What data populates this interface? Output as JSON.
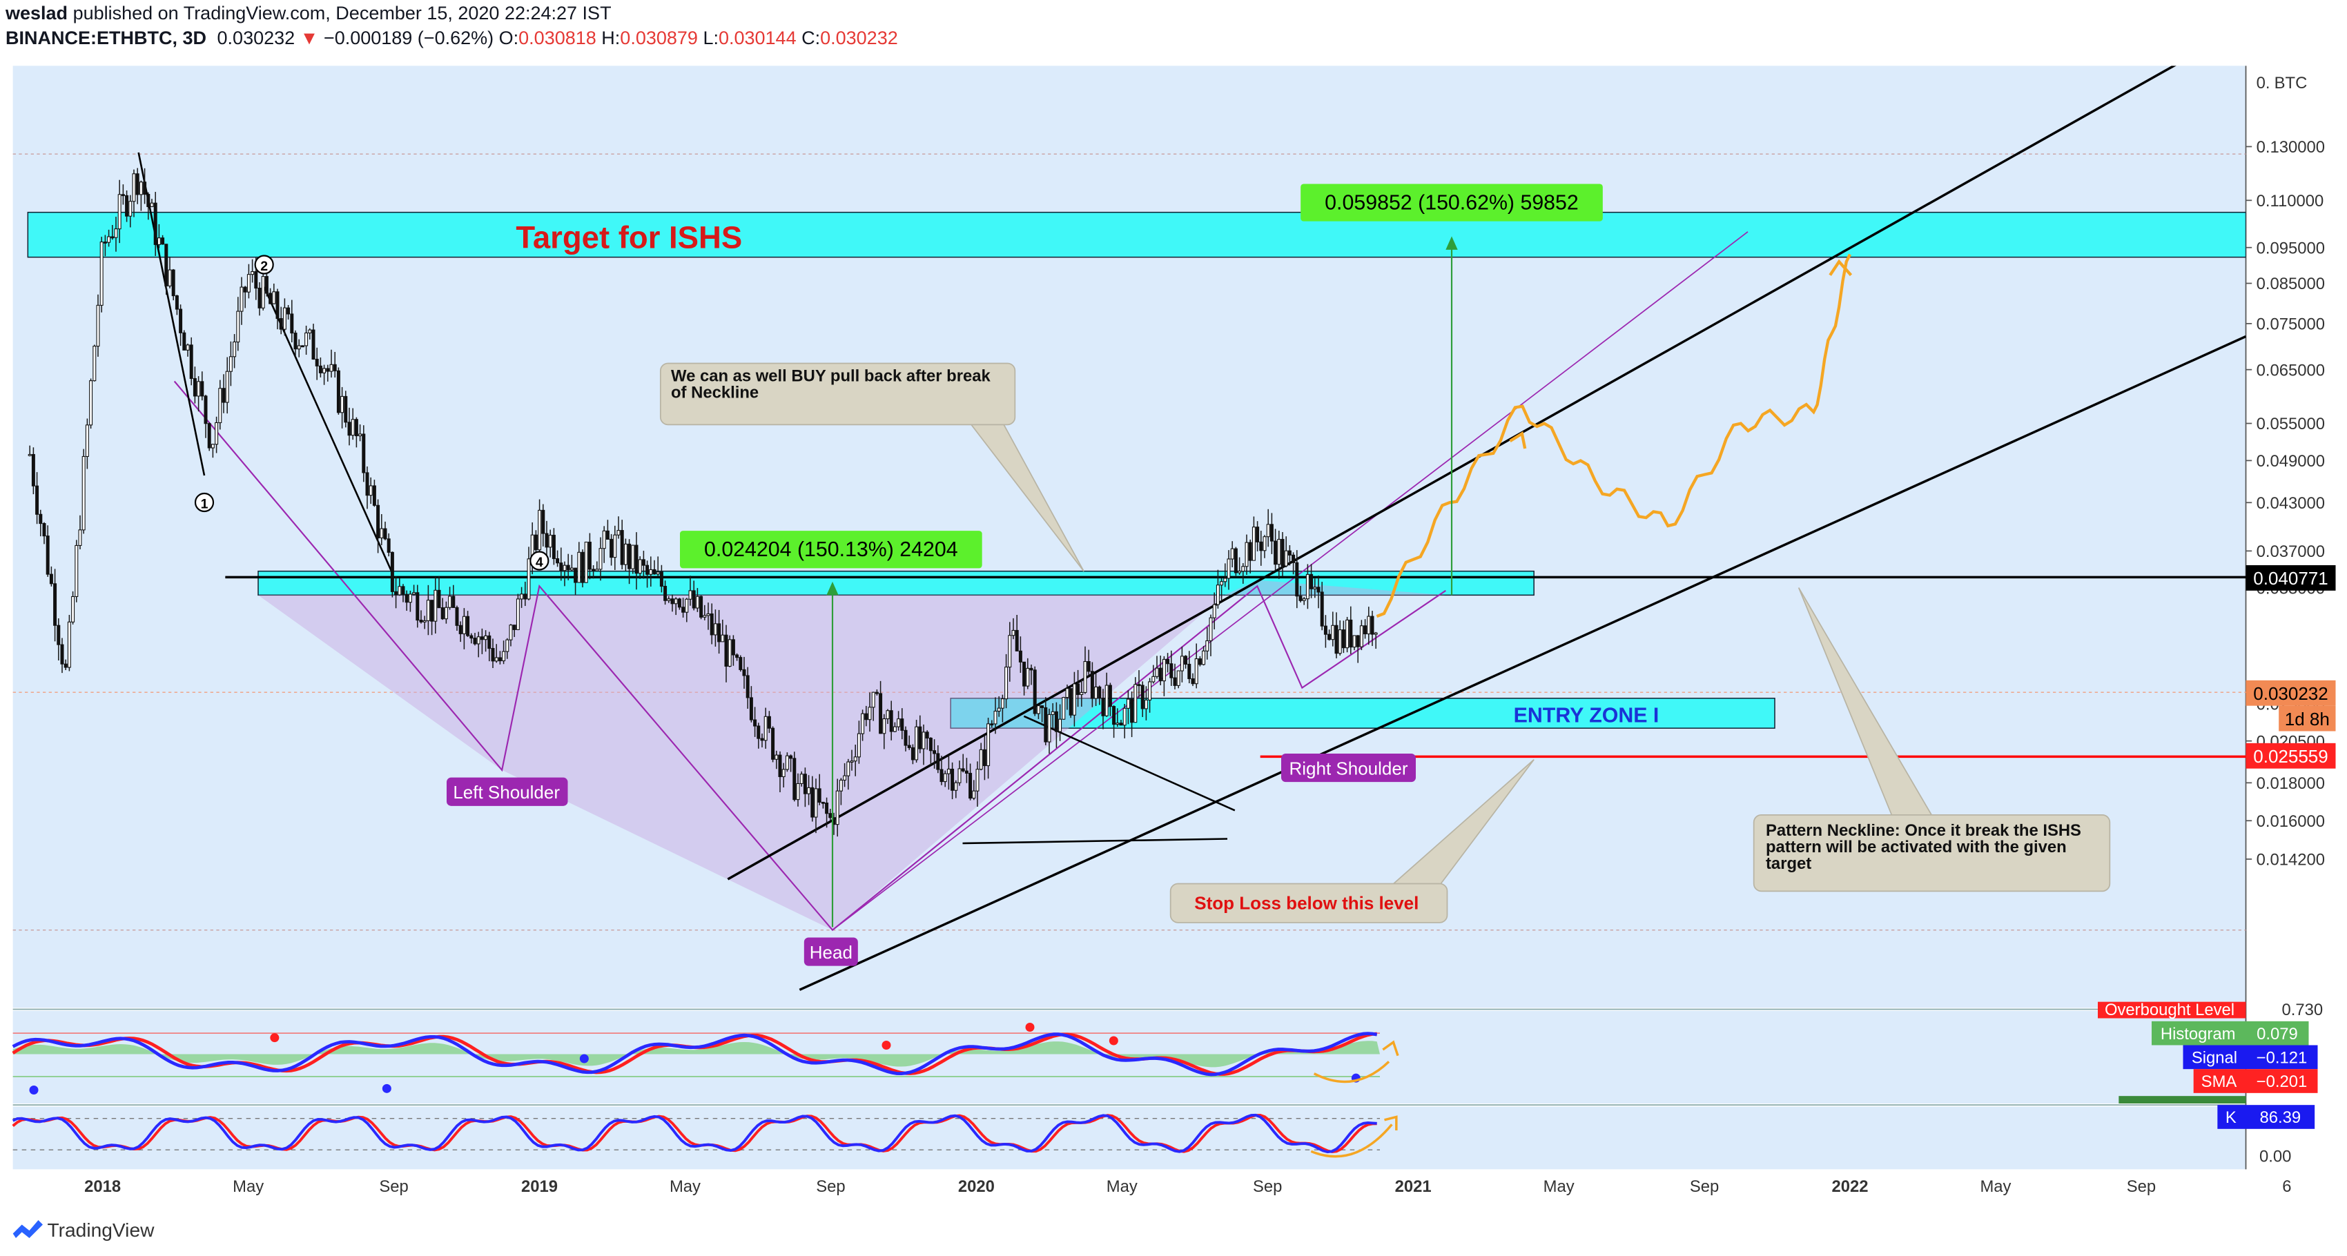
{
  "header": {
    "author": "weslad",
    "published": "published on TradingView.com, December 15, 2020 22:24:27 IST",
    "symbol": "BINANCE:ETHBTC, 3D",
    "last": "0.030232",
    "change": "−0.000189 (−0.62%)",
    "o_label": "O:",
    "o": "0.030818",
    "h_label": "H:",
    "h": "0.030879",
    "l_label": "L:",
    "l": "0.030144",
    "c_label": "C:",
    "c": "0.030232"
  },
  "chart_data": {
    "type": "candlestick",
    "y_scale": "log",
    "unit_label": "BTC",
    "y_ticks": [
      "0.130000",
      "0.110000",
      "0.095000",
      "0.085000",
      "0.075000",
      "0.065000",
      "0.055000",
      "0.049000",
      "0.043000",
      "0.037000",
      "0.033000",
      "0.023000",
      "0.020500",
      "0.018000",
      "0.016000",
      "0.014200"
    ],
    "x_ticks": [
      "2018",
      "May",
      "Sep",
      "2019",
      "May",
      "Sep",
      "2020",
      "May",
      "Sep",
      "2021",
      "May",
      "Sep",
      "2022",
      "May",
      "Sep",
      "6"
    ],
    "price_series": [
      {
        "date": "2017-11",
        "value": 0.05
      },
      {
        "date": "2017-12",
        "value": 0.025
      },
      {
        "date": "2018-01",
        "value": 0.095
      },
      {
        "date": "2018-02",
        "value": 0.12
      },
      {
        "date": "2018-03",
        "value": 0.08
      },
      {
        "date": "2018-04",
        "value": 0.052
      },
      {
        "date": "2018-05",
        "value": 0.087
      },
      {
        "date": "2018-06",
        "value": 0.075
      },
      {
        "date": "2018-07",
        "value": 0.068
      },
      {
        "date": "2018-08",
        "value": 0.052
      },
      {
        "date": "2018-09",
        "value": 0.033
      },
      {
        "date": "2018-10",
        "value": 0.031
      },
      {
        "date": "2018-11",
        "value": 0.03
      },
      {
        "date": "2018-12",
        "value": 0.026
      },
      {
        "date": "2019-01",
        "value": 0.04
      },
      {
        "date": "2019-02",
        "value": 0.035
      },
      {
        "date": "2019-03",
        "value": 0.038
      },
      {
        "date": "2019-04",
        "value": 0.034
      },
      {
        "date": "2019-05",
        "value": 0.032
      },
      {
        "date": "2019-06",
        "value": 0.028
      },
      {
        "date": "2019-07",
        "value": 0.022
      },
      {
        "date": "2019-08",
        "value": 0.018
      },
      {
        "date": "2019-09",
        "value": 0.016
      },
      {
        "date": "2019-10",
        "value": 0.023
      },
      {
        "date": "2019-11",
        "value": 0.021
      },
      {
        "date": "2019-12",
        "value": 0.019
      },
      {
        "date": "2020-01",
        "value": 0.018
      },
      {
        "date": "2020-02",
        "value": 0.028
      },
      {
        "date": "2020-03",
        "value": 0.021
      },
      {
        "date": "2020-04",
        "value": 0.025
      },
      {
        "date": "2020-05",
        "value": 0.022
      },
      {
        "date": "2020-06",
        "value": 0.025
      },
      {
        "date": "2020-07",
        "value": 0.026
      },
      {
        "date": "2020-08",
        "value": 0.036
      },
      {
        "date": "2020-09",
        "value": 0.039
      },
      {
        "date": "2020-10",
        "value": 0.033
      },
      {
        "date": "2020-11",
        "value": 0.028
      },
      {
        "date": "2020-12",
        "value": 0.0302
      }
    ],
    "projection": [
      {
        "date": "2020-12",
        "value": 0.0302
      },
      {
        "date": "2021-02",
        "value": 0.043
      },
      {
        "date": "2021-04",
        "value": 0.058
      },
      {
        "date": "2021-06",
        "value": 0.046
      },
      {
        "date": "2021-08",
        "value": 0.04
      },
      {
        "date": "2021-10",
        "value": 0.055
      },
      {
        "date": "2021-12",
        "value": 0.057
      },
      {
        "date": "2022-01",
        "value": 0.093
      }
    ],
    "horizontal_levels": [
      {
        "value": 0.040771,
        "label": "0.040771"
      },
      {
        "value": 0.025559,
        "label": "0.025559"
      }
    ],
    "current_price": "0.030232",
    "countdown": "1d 8h",
    "zones": [
      {
        "label": "Target for ISHS",
        "low": 0.094,
        "high": 0.107
      },
      {
        "label": "",
        "low": 0.039,
        "high": 0.042
      },
      {
        "label": "ENTRY ZONE I",
        "low": 0.027,
        "high": 0.029
      }
    ],
    "measurements": [
      {
        "label": "0.024204 (150.13%) 24204"
      },
      {
        "label": "0.059852 (150.62%) 59852"
      }
    ],
    "annotations": {
      "left_shoulder": "Left Shoulder",
      "head": "Head",
      "right_shoulder": "Right Shoulder",
      "pullback_note": "We can as well BUY pull back after break of Neckline",
      "stop_note": "Stop Loss below this level",
      "neckline_note": "Pattern Neckline: Once it break the ISHS pattern will be activated with the given target",
      "wave_1": "1",
      "wave_2": "2",
      "wave_4": "4"
    },
    "macd": {
      "overbought_label": "Overbought Level",
      "overbought": "0.730",
      "histogram_label": "Histogram",
      "histogram": "0.079",
      "signal_label": "Signal",
      "signal": "−0.121",
      "sma_label": "SMA",
      "sma": "−0.201"
    },
    "stoch": {
      "k_label": "K",
      "k": "86.39",
      "bottom_tick": "0.00"
    }
  },
  "footer": {
    "brand": "TradingView"
  },
  "colors": {
    "plot_bg": "#dcebfb",
    "zone": "#40f8f8",
    "target_text": "#d61a1a",
    "entry_text": "#1a33d6",
    "measure_bg": "#5cf02c",
    "label_purple": "#9c27b0",
    "neckline": "#000000",
    "stop": "#ff0000",
    "projection": "#f5a623",
    "price_badge": "#f28a54",
    "note_bg": "#d9d5c4",
    "indicator_blue": "#2929ff",
    "indicator_red": "#ff2020"
  }
}
